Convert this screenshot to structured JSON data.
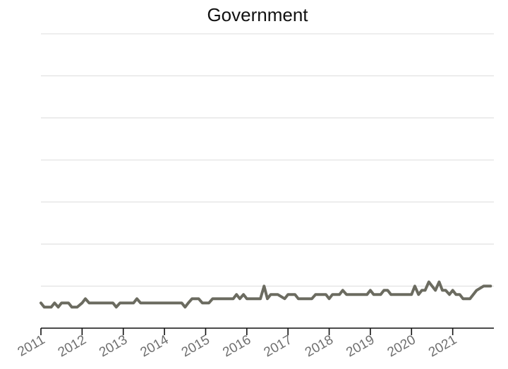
{
  "chart_data": {
    "type": "line",
    "title": "Government",
    "xlabel": "",
    "ylabel": "",
    "x_ticks": [
      "2011",
      "2012",
      "2013",
      "2014",
      "2015",
      "2016",
      "2017",
      "2018",
      "2019",
      "2020",
      "2021"
    ],
    "xlim": [
      2011,
      2022
    ],
    "ylim": [
      0,
      35
    ],
    "gridlines_y": [
      5,
      10,
      15,
      20,
      25,
      30,
      35
    ],
    "grid": true,
    "series_color": "#6b6b60",
    "series": [
      {
        "values": [
          [
            2011.0,
            3.0
          ],
          [
            2011.08,
            2.5
          ],
          [
            2011.25,
            2.5
          ],
          [
            2011.33,
            3.0
          ],
          [
            2011.42,
            2.5
          ],
          [
            2011.5,
            3.0
          ],
          [
            2011.67,
            3.0
          ],
          [
            2011.75,
            2.5
          ],
          [
            2011.88,
            2.5
          ],
          [
            2012.0,
            3.0
          ],
          [
            2012.08,
            3.5
          ],
          [
            2012.17,
            3.0
          ],
          [
            2012.33,
            3.0
          ],
          [
            2012.58,
            3.0
          ],
          [
            2012.75,
            3.0
          ],
          [
            2012.83,
            2.5
          ],
          [
            2012.92,
            3.0
          ],
          [
            2013.0,
            3.0
          ],
          [
            2013.17,
            3.0
          ],
          [
            2013.25,
            3.0
          ],
          [
            2013.33,
            3.5
          ],
          [
            2013.42,
            3.0
          ],
          [
            2013.67,
            3.0
          ],
          [
            2014.0,
            3.0
          ],
          [
            2014.25,
            3.0
          ],
          [
            2014.42,
            3.0
          ],
          [
            2014.5,
            2.5
          ],
          [
            2014.58,
            3.0
          ],
          [
            2014.67,
            3.5
          ],
          [
            2014.83,
            3.5
          ],
          [
            2014.92,
            3.0
          ],
          [
            2015.0,
            3.0
          ],
          [
            2015.08,
            3.0
          ],
          [
            2015.17,
            3.5
          ],
          [
            2015.33,
            3.5
          ],
          [
            2015.5,
            3.5
          ],
          [
            2015.67,
            3.5
          ],
          [
            2015.75,
            4.0
          ],
          [
            2015.83,
            3.5
          ],
          [
            2015.92,
            4.0
          ],
          [
            2016.0,
            3.5
          ],
          [
            2016.17,
            3.5
          ],
          [
            2016.33,
            3.5
          ],
          [
            2016.42,
            5.0
          ],
          [
            2016.5,
            3.5
          ],
          [
            2016.58,
            4.0
          ],
          [
            2016.75,
            4.0
          ],
          [
            2016.92,
            3.5
          ],
          [
            2017.0,
            4.0
          ],
          [
            2017.17,
            4.0
          ],
          [
            2017.25,
            3.5
          ],
          [
            2017.42,
            3.5
          ],
          [
            2017.58,
            3.5
          ],
          [
            2017.67,
            4.0
          ],
          [
            2017.83,
            4.0
          ],
          [
            2017.92,
            4.0
          ],
          [
            2018.0,
            3.5
          ],
          [
            2018.08,
            4.0
          ],
          [
            2018.25,
            4.0
          ],
          [
            2018.33,
            4.5
          ],
          [
            2018.42,
            4.0
          ],
          [
            2018.58,
            4.0
          ],
          [
            2018.75,
            4.0
          ],
          [
            2018.92,
            4.0
          ],
          [
            2019.0,
            4.5
          ],
          [
            2019.08,
            4.0
          ],
          [
            2019.25,
            4.0
          ],
          [
            2019.33,
            4.5
          ],
          [
            2019.42,
            4.5
          ],
          [
            2019.5,
            4.0
          ],
          [
            2019.67,
            4.0
          ],
          [
            2019.83,
            4.0
          ],
          [
            2020.0,
            4.0
          ],
          [
            2020.08,
            5.0
          ],
          [
            2020.17,
            4.0
          ],
          [
            2020.25,
            4.5
          ],
          [
            2020.33,
            4.5
          ],
          [
            2020.42,
            5.5
          ],
          [
            2020.58,
            4.5
          ],
          [
            2020.67,
            5.5
          ],
          [
            2020.75,
            4.5
          ],
          [
            2020.83,
            4.5
          ],
          [
            2020.92,
            4.0
          ],
          [
            2021.0,
            4.5
          ],
          [
            2021.08,
            4.0
          ],
          [
            2021.17,
            4.0
          ],
          [
            2021.25,
            3.5
          ],
          [
            2021.42,
            3.5
          ],
          [
            2021.58,
            4.5
          ],
          [
            2021.75,
            5.0
          ],
          [
            2021.92,
            5.0
          ]
        ]
      }
    ]
  }
}
